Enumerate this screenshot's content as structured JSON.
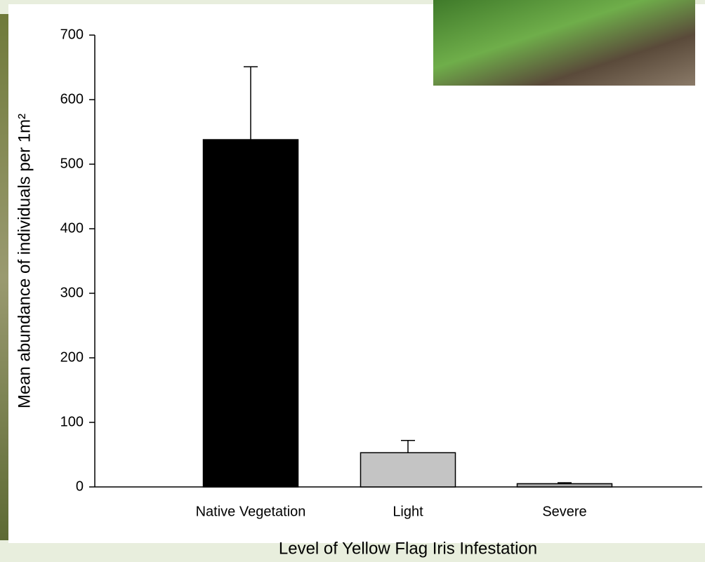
{
  "chart_data": {
    "type": "bar",
    "y_label": "Mean abundance of individuals per 1m²",
    "x_label": "Level of Yellow Flag Iris Infestation",
    "categories": [
      "Native Vegetation",
      "Light",
      "Severe"
    ],
    "values": [
      538,
      53,
      5
    ],
    "errors": [
      113,
      19,
      1.5
    ],
    "colors": [
      "#000000",
      "#c4c4c4",
      "#a8a8a8"
    ],
    "ylim": [
      0,
      700
    ],
    "yticks": [
      0,
      100,
      200,
      300,
      400,
      500,
      600,
      700
    ]
  }
}
